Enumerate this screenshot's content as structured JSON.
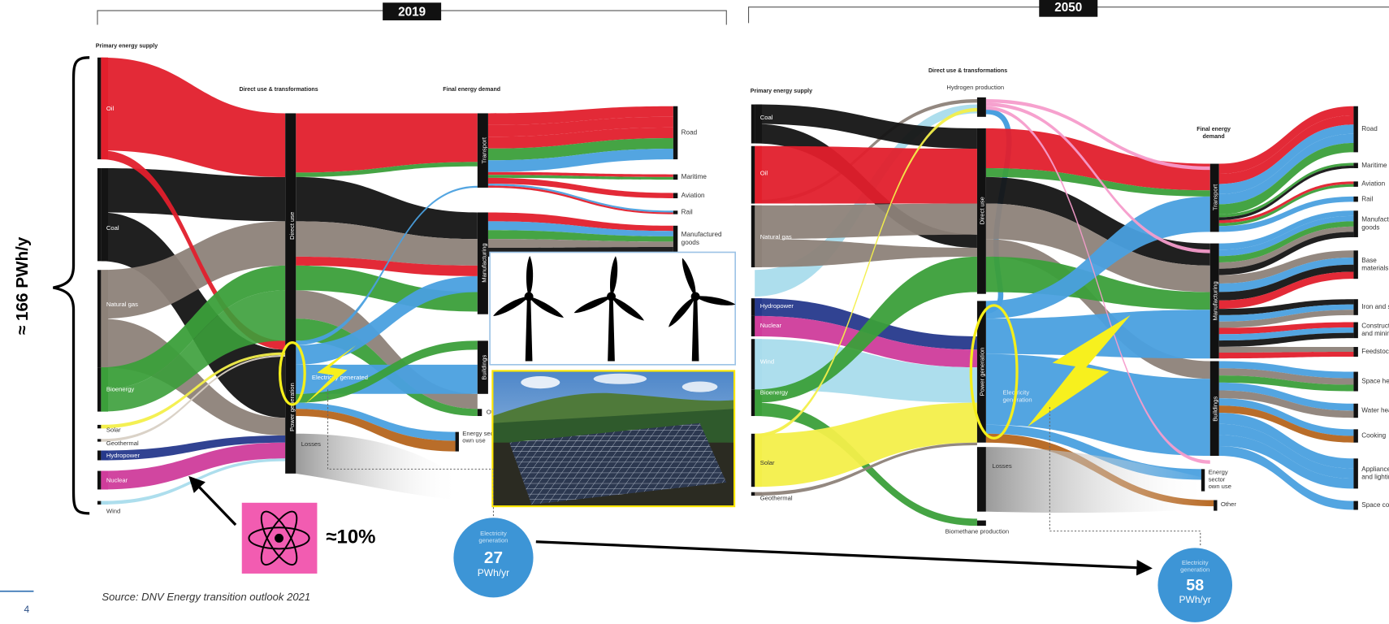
{
  "side_label": "≈ 166 PWh/y",
  "nuclear_share": "≈10%",
  "source": "Source: DNV Energy transition outlook 2021",
  "page_number": "4",
  "panels": [
    {
      "year": "2019",
      "primary_header": "Primary energy supply",
      "middle_header": "Direct use & transformations",
      "final_header": "Final energy demand",
      "supply": [
        "Oil",
        "Coal",
        "Natural gas",
        "Bioenergy",
        "Solar",
        "Geothermal",
        "Hydropower",
        "Nuclear",
        "Wind"
      ],
      "nodes": [
        "Direct use",
        "Power generation",
        "Losses"
      ],
      "sectors": [
        "Transport",
        "Manufacturing",
        "Buildings",
        "Other",
        "Energy sector own use"
      ],
      "uses": [
        "Road",
        "Maritime",
        "Aviation",
        "Rail",
        "Manufactured goods"
      ],
      "flow_label": "Electricity generated",
      "bubble": {
        "label": "Electricity generation",
        "value": "27",
        "unit": "PWh/yr"
      }
    },
    {
      "year": "2050",
      "primary_header": "Primary energy supply",
      "middle_header": "Direct use & transformations",
      "final_header": "Final energy demand",
      "supply": [
        "Coal",
        "Oil",
        "Natural gas",
        "Hydropower",
        "Nuclear",
        "Wind",
        "Bioenergy",
        "Solar",
        "Geothermal"
      ],
      "nodes": [
        "Hydrogen production",
        "Direct use",
        "Power generation",
        "Losses",
        "Biomethane production"
      ],
      "node_note": "Electricity generation",
      "sectors": [
        "Transport",
        "Manufacturing",
        "Buildings",
        "Energy sector own use",
        "Other"
      ],
      "uses": [
        "Road",
        "Maritime",
        "Aviation",
        "Rail",
        "Manufactured goods",
        "Base materials",
        "Iron and steel",
        "Construction and mining",
        "Feedstock",
        "Space heating",
        "Water heating",
        "Cooking",
        "Appliances and lighting",
        "Space cooling"
      ],
      "bubble": {
        "label": "Electricity generation",
        "value": "58",
        "unit": "PWh/yr"
      }
    }
  ]
}
